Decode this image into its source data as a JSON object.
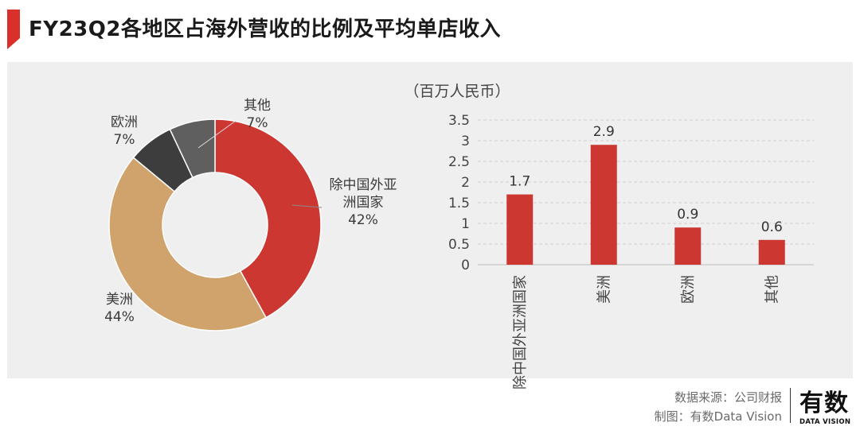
{
  "page": {
    "title": "FY23Q2各地区占海外营收的比例及平均单店收入",
    "accent_color": "#d9302b"
  },
  "chart_data": [
    {
      "type": "pie",
      "style": "donut",
      "categories": [
        "除中国外亚洲国家",
        "美洲",
        "欧洲",
        "其他"
      ],
      "values": [
        42,
        44,
        7,
        7
      ],
      "value_labels": [
        "42%",
        "44%",
        "7%",
        "7%"
      ],
      "slice_labels": [
        [
          "除中国外亚",
          "洲国家"
        ],
        [
          "美洲"
        ],
        [
          "欧洲"
        ],
        [
          "其他"
        ]
      ],
      "colors": [
        "#cc3732",
        "#cfa36b",
        "#3d3d3d",
        "#5f5f5f"
      ]
    },
    {
      "type": "bar",
      "unit": "（百万人民币）",
      "categories": [
        "除中国外亚洲国家",
        "美洲",
        "欧洲",
        "其他"
      ],
      "values": [
        1.7,
        2.9,
        0.9,
        0.6
      ],
      "value_labels": [
        "1.7",
        "2.9",
        "0.9",
        "0.6"
      ],
      "ylim": [
        0,
        3.5
      ],
      "yticks": [
        0,
        0.5,
        1,
        1.5,
        2,
        2.5,
        3,
        3.5
      ],
      "ytick_labels": [
        "0",
        "0.5",
        "1",
        "1.5",
        "2",
        "2.5",
        "3",
        "3.5"
      ],
      "grid": "horizontal dashed",
      "bar_color": "#cc3732"
    }
  ],
  "footer": {
    "source": "数据来源：公司财报",
    "credit": "制图：有数Data Vision"
  },
  "logo": {
    "main": "有数",
    "sub": "DATA VISION"
  }
}
